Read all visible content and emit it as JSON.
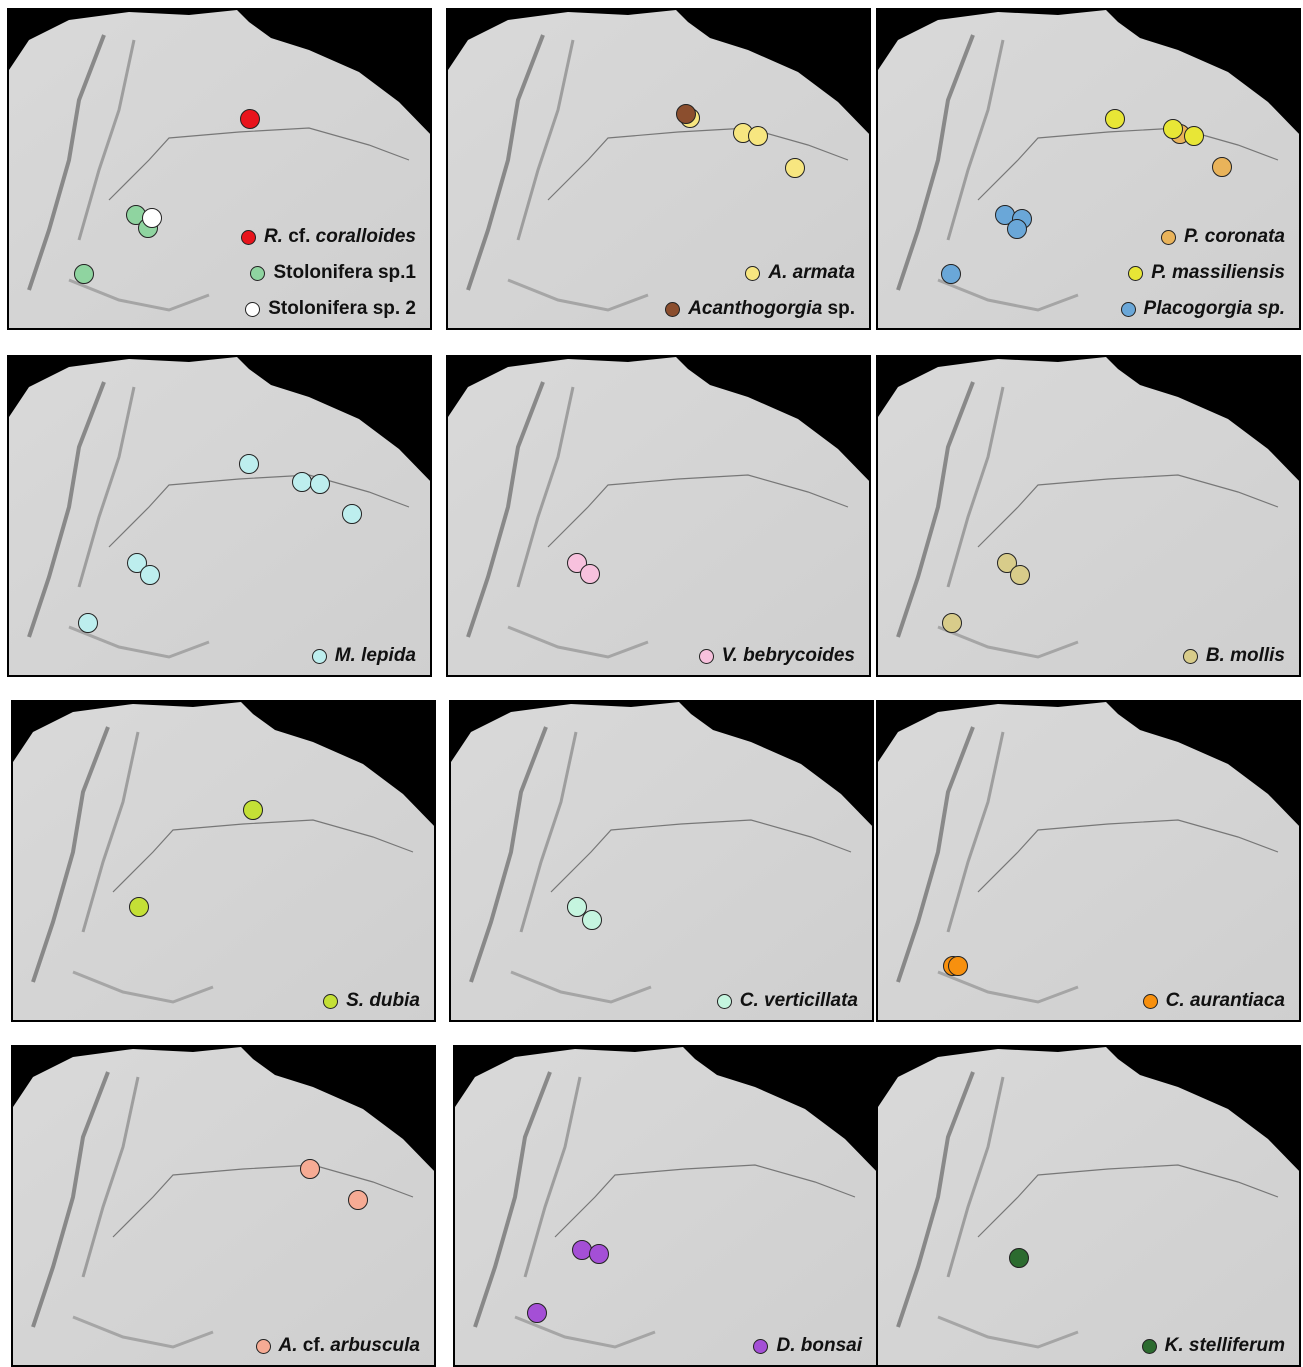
{
  "panels": [
    {
      "legend": [
        {
          "label": [
            {
              "text": "R.",
              "italic": true
            },
            {
              "text": " cf. ",
              "italic": false
            },
            {
              "text": "coralloides",
              "italic": true
            }
          ],
          "color": "#e8141c"
        },
        {
          "label": [
            {
              "text": "Stolonifera sp.1",
              "italic": false
            }
          ],
          "color": "#8fd4a0"
        },
        {
          "label": [
            {
              "text": "Stolonifera sp. 2",
              "italic": false
            }
          ],
          "color": "#ffffff"
        }
      ]
    },
    {
      "legend": [
        {
          "label": [
            {
              "text": "A. armata",
              "italic": true
            }
          ],
          "color": "#f7e680"
        },
        {
          "label": [
            {
              "text": "Acanthogorgia",
              "italic": true
            },
            {
              "text": " sp.",
              "italic": false
            }
          ],
          "color": "#8b4e2e"
        }
      ]
    },
    {
      "legend": [
        {
          "label": [
            {
              "text": "P. coronata",
              "italic": true
            }
          ],
          "color": "#e9b35a"
        },
        {
          "label": [
            {
              "text": "P. massiliensis",
              "italic": true
            }
          ],
          "color": "#e8e636"
        },
        {
          "label": [
            {
              "text": "Placogorgia sp.",
              "italic": true
            }
          ],
          "color": "#6aa7d8"
        }
      ]
    },
    {
      "legend": [
        {
          "label": [
            {
              "text": "M. lepida",
              "italic": true
            }
          ],
          "color": "#bdeeee"
        }
      ]
    },
    {
      "legend": [
        {
          "label": [
            {
              "text": "V. bebrycoides",
              "italic": true
            }
          ],
          "color": "#f7c1dd"
        }
      ]
    },
    {
      "legend": [
        {
          "label": [
            {
              "text": "B. mollis",
              "italic": true
            }
          ],
          "color": "#d8cc8a"
        }
      ]
    },
    {
      "legend": [
        {
          "label": [
            {
              "text": "S. dubia",
              "italic": true
            }
          ],
          "color": "#c4e036"
        }
      ]
    },
    {
      "legend": [
        {
          "label": [
            {
              "text": "C. verticillata",
              "italic": true
            }
          ],
          "color": "#c5f5df"
        }
      ]
    },
    {
      "legend": [
        {
          "label": [
            {
              "text": "C. aurantiaca",
              "italic": true
            }
          ],
          "color": "#f7900e"
        }
      ]
    },
    {
      "legend": [
        {
          "label": [
            {
              "text": "A.",
              "italic": true
            },
            {
              "text": " cf. ",
              "italic": false
            },
            {
              "text": "arbuscula",
              "italic": true
            }
          ],
          "color": "#f6ab94"
        }
      ]
    },
    {
      "legend": [
        {
          "label": [
            {
              "text": "D. bonsai",
              "italic": true
            }
          ],
          "color": "#a44fd6"
        }
      ]
    },
    {
      "legend": [
        {
          "label": [
            {
              "text": "K. stelliferum",
              "italic": true
            }
          ],
          "color": "#2c6b2f"
        }
      ]
    }
  ]
}
